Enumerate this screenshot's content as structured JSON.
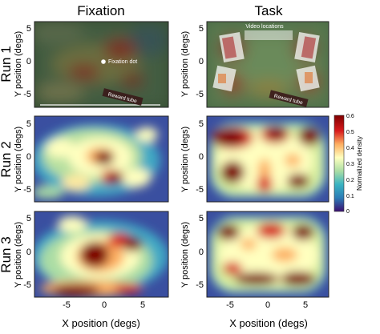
{
  "columns": [
    "Fixation",
    "Task"
  ],
  "rows": [
    "Run 1",
    "Run 2",
    "Run 3"
  ],
  "axis": {
    "xlabel": "X position (degs)",
    "ylabel": "Y position (degs)",
    "xticks": [
      "-5",
      "0",
      "5"
    ],
    "yticks": [
      "5",
      "0",
      "-5"
    ]
  },
  "annotations": {
    "fixation_dot": "Fixation dot",
    "reward_tube": "Reward tube",
    "video_locations": "Video locations"
  },
  "colorbar": {
    "label": "Normalized density",
    "ticks": [
      "0.6",
      "0.5",
      "0.4",
      "0.3",
      "0.2",
      "0.1",
      "0"
    ],
    "colors": [
      "#3b0f70",
      "#2c7bb6",
      "#39b3c2",
      "#abdda4",
      "#ffffbf",
      "#fdae61",
      "#d7191c",
      "#7f0000"
    ]
  }
}
